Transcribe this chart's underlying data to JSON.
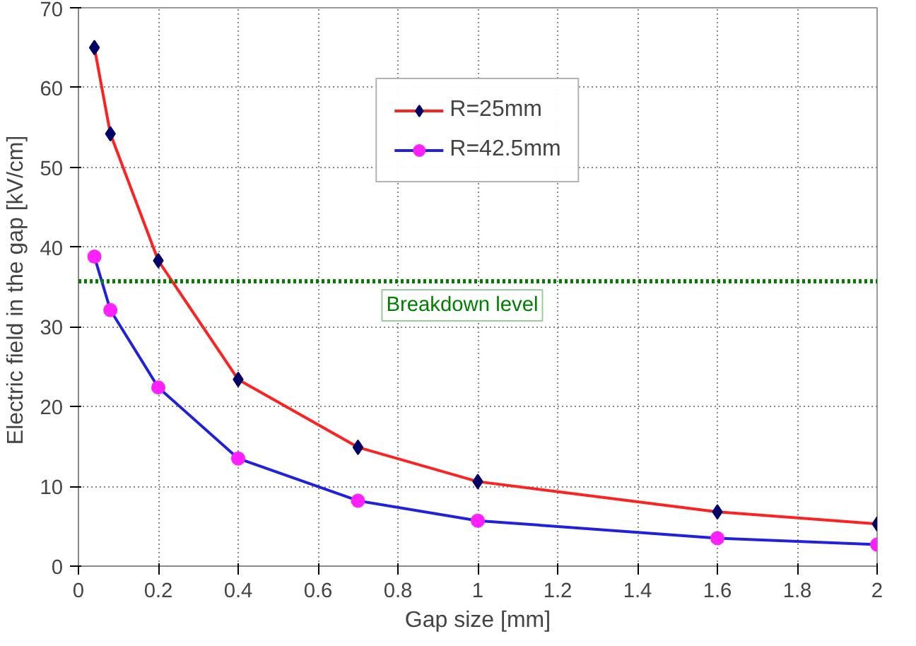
{
  "chart_data": {
    "type": "line",
    "xlabel": "Gap size [mm]",
    "ylabel": "Electric field in the gap  [kV/cm]",
    "x": [
      0.04,
      0.08,
      0.2,
      0.4,
      0.7,
      1,
      1.6,
      2
    ],
    "series": [
      {
        "name": "R=25mm",
        "color": "#ff2020",
        "colors": [
          "#000066",
          "#000066",
          "#000066",
          "#000066",
          "#000066",
          "#000066",
          "#000066",
          "#000066"
        ],
        "marker": "diamond",
        "values": [
          65,
          54.2,
          38.3,
          23.4,
          14.9,
          10.6,
          6.8,
          5.3
        ]
      },
      {
        "name": "R=42.5mm",
        "color": "#2020dd",
        "colors": [
          "#ff20ff",
          "#ff20ff",
          "#ff20ff",
          "#ff20ff",
          "#ff20ff",
          "#ff20ff",
          "#ff20ff",
          "#ff20ff"
        ],
        "marker": "circle",
        "values": [
          38.8,
          32.1,
          22.4,
          13.5,
          8.2,
          5.7,
          3.5,
          2.7
        ]
      }
    ],
    "ref_lines": [
      {
        "axis": "y",
        "value": 35.7,
        "label": "Breakdown level",
        "color": "#008000",
        "line_style": "dotted"
      }
    ],
    "xlim": [
      0,
      2
    ],
    "ylim": [
      0,
      70
    ],
    "xticks": [
      0,
      0.2,
      0.4,
      0.6,
      0.8,
      1,
      1.2,
      1.4,
      1.6,
      1.8,
      2
    ],
    "yticks": [
      0,
      10,
      20,
      30,
      40,
      50,
      60,
      70
    ],
    "grid": true,
    "legend": "top",
    "line_style": "solid"
  }
}
